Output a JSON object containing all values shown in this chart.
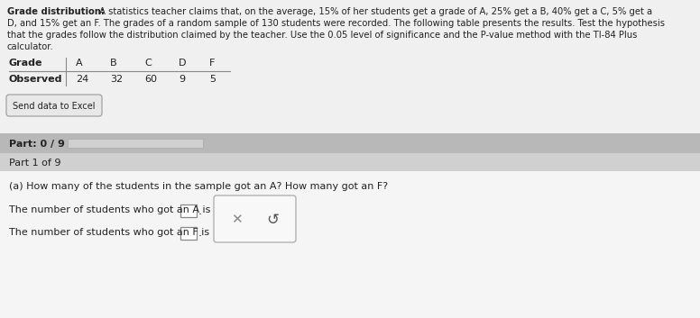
{
  "title_bold": "Grade distribution:",
  "line1_rest": " A statistics teacher claims that, on the average, 15% of her students get a grade of A, 25% get a B, 40% get a C, 5% get a",
  "line2": "D, and 15% get an F. The grades of a random sample of 130 students were recorded. The following table presents the results. Test the hypothesis",
  "line3": "that the grades follow the distribution claimed by the teacher. Use the 0.05 level of significance and the P-value method with the TI-84 Plus",
  "line4": "calculator.",
  "table_headers": [
    "Grade",
    "A",
    "B",
    "C",
    "D",
    "F"
  ],
  "table_row_label": "Observed",
  "table_values": [
    24,
    32,
    60,
    9,
    5
  ],
  "send_data_button": "Send data to Excel",
  "part_progress": "Part: 0 / 9",
  "part_label": "Part 1 of 9",
  "question": "(a) How many of the students in the sample got an A? How many got an F?",
  "answer_line1": "The number of students who got an A is",
  "answer_line2": "The number of students who got an F is",
  "bg_color_main": "#dcdcdc",
  "bg_color_white": "#f5f5f5",
  "bg_color_top": "#f0f0f0",
  "bg_color_part_header": "#b8b8b8",
  "bg_color_part_body": "#d0d0d0",
  "bg_color_progress_bar": "#d8d8d8",
  "text_color_main": "#222222",
  "button_bg": "#e8e8e8",
  "button_border": "#999999",
  "input_box_color": "#ffffff",
  "input_box_border": "#888888",
  "popup_bg": "#f8f8f8",
  "popup_border": "#aaaaaa",
  "x_color": "#888888",
  "arrow_color": "#555555",
  "table_line_color": "#888888",
  "progress_bar_fill": "#d0d0d0",
  "progress_bar_border": "#aaaaaa"
}
